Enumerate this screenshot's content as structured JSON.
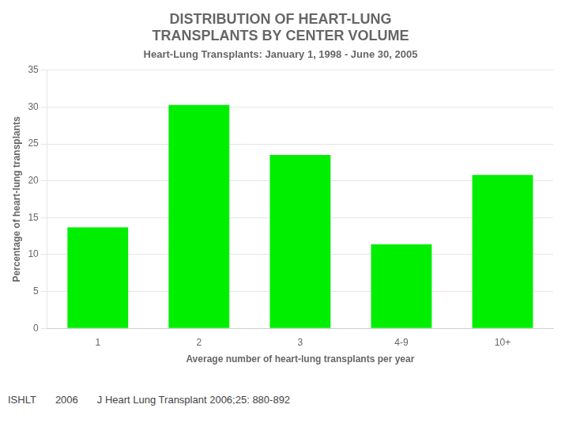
{
  "chart_data": {
    "type": "bar",
    "title": [
      "DISTRIBUTION OF HEART-LUNG",
      "TRANSPLANTS BY CENTER VOLUME"
    ],
    "subtitle": "Heart-Lung Transplants: January 1, 1998 - June 30, 2005",
    "categories": [
      "1",
      "2",
      "3",
      "4-9",
      "10+"
    ],
    "values": [
      13.7,
      30.3,
      23.5,
      11.4,
      20.8
    ],
    "color": "#00EE00",
    "xlabel": "Average number of heart-lung transplants per year",
    "ylabel": "Percentage of heart-lung transplants",
    "ylim": [
      0,
      35
    ],
    "yticks": [
      0,
      5,
      10,
      15,
      20,
      25,
      30,
      35
    ],
    "grid": true,
    "annotations": [
      "ISHLT",
      "2006",
      "J Heart Lung Transplant 2006;25: 880-892"
    ]
  }
}
